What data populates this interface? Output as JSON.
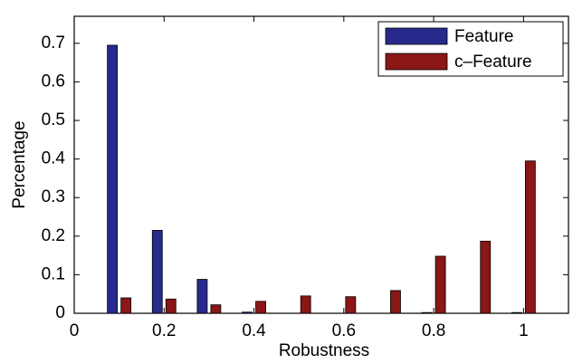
{
  "chart_data": {
    "type": "bar",
    "x_label": "Robustness",
    "y_label": "Percentage",
    "x": [
      0.1,
      0.2,
      0.3,
      0.4,
      0.5,
      0.6,
      0.7,
      0.8,
      0.9,
      1.0
    ],
    "series": [
      {
        "name": "Feature",
        "color": "#272a8c",
        "values": [
          0.695,
          0.215,
          0.088,
          0.003,
          0,
          0,
          0,
          0.002,
          0,
          0.002
        ]
      },
      {
        "name": "c–Feature",
        "color": "#8a1616",
        "values": [
          0.04,
          0.037,
          0.022,
          0.031,
          0.045,
          0.043,
          0.059,
          0.148,
          0.187,
          0.395
        ]
      }
    ],
    "xlim": [
      0,
      1.1
    ],
    "ylim": [
      0,
      0.77
    ],
    "xticks": [
      0,
      0.2,
      0.4,
      0.6,
      0.8,
      1
    ],
    "yticks": [
      0,
      0.1,
      0.2,
      0.3,
      0.4,
      0.5,
      0.6,
      0.7
    ],
    "legend": "upper right"
  }
}
